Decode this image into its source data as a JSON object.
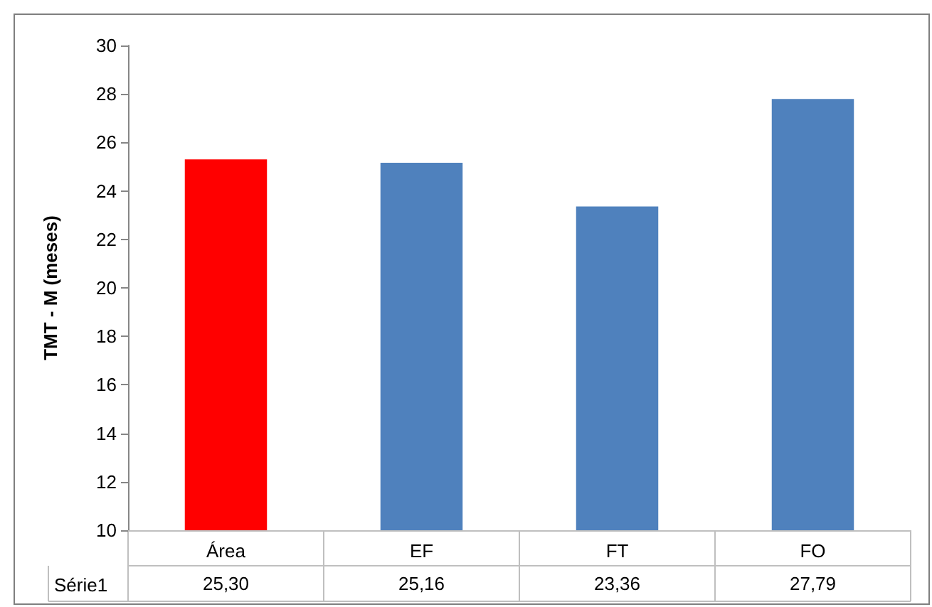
{
  "chart_data": {
    "type": "bar",
    "ylabel": "TMT - M (meses)",
    "categories": [
      "Área",
      "EF",
      "FT",
      "FO"
    ],
    "series": [
      {
        "name": "Série1",
        "values": [
          25.3,
          25.16,
          23.36,
          27.79
        ],
        "colors": [
          "#ff0000",
          "#4f81bd",
          "#4f81bd",
          "#4f81bd"
        ],
        "value_labels": [
          "25,30",
          "25,16",
          "23,36",
          "27,79"
        ]
      }
    ],
    "ylim": [
      10,
      30
    ],
    "yticks": [
      10,
      12,
      14,
      16,
      18,
      20,
      22,
      24,
      26,
      28,
      30
    ],
    "grid": false,
    "legend": false
  }
}
